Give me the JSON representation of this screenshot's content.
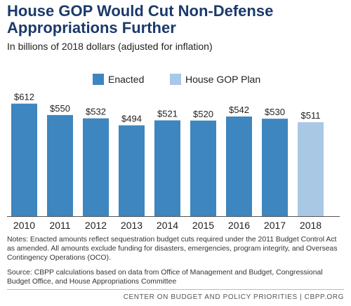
{
  "title": "House GOP Would Cut Non-Defense Appropriations Further",
  "subtitle": "In billions of 2018 dollars (adjusted for inflation)",
  "notes": "Notes: Enacted amounts reflect sequestration budget cuts required under the 2011 Budget Control Act as amended. All amounts exclude funding for disasters, emergencies, program integrity, and Overseas Contingency Operations (OCO).",
  "source": "Source: CBPP calculations based on data from Office of Management and Budget, Congressional Budget Office, and House Appropriations Committee",
  "footer": "CENTER ON BUDGET AND POLICY PRIORITIES | CBPP.ORG",
  "colors": {
    "enacted": "#3d86c0",
    "plan": "#a9c8e4",
    "axis": "#555555"
  },
  "chart_data": {
    "type": "bar",
    "categories": [
      "2010",
      "2011",
      "2012",
      "2013",
      "2014",
      "2015",
      "2016",
      "2017",
      "2018"
    ],
    "values": [
      612,
      550,
      532,
      494,
      521,
      520,
      542,
      530,
      511
    ],
    "labels": [
      "$612",
      "$550",
      "$532",
      "$494",
      "$521",
      "$520",
      "$542",
      "$530",
      "$511"
    ],
    "series_membership": [
      "Enacted",
      "Enacted",
      "Enacted",
      "Enacted",
      "Enacted",
      "Enacted",
      "Enacted",
      "Enacted",
      "House GOP Plan"
    ],
    "legend": [
      {
        "name": "Enacted",
        "color": "#3d86c0"
      },
      {
        "name": "House GOP Plan",
        "color": "#a9c8e4"
      }
    ],
    "legend_position": "top-center",
    "ylim": [
      0,
      700
    ],
    "grid": false
  }
}
